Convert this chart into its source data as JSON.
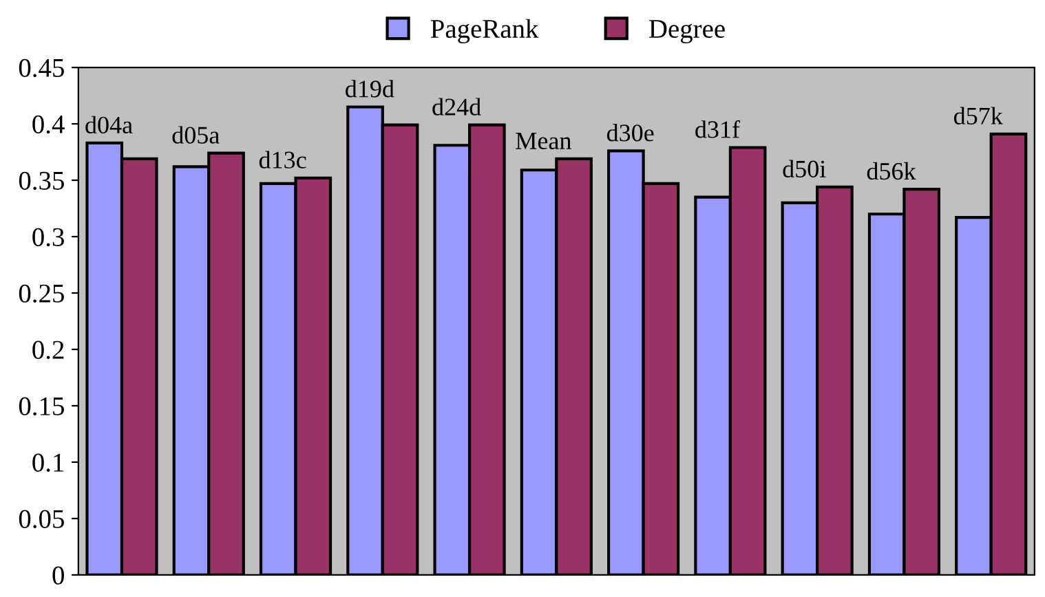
{
  "chart_data": {
    "type": "bar",
    "categories": [
      "d04a",
      "d05a",
      "d13c",
      "d19d",
      "d24d",
      "Mean",
      "d30e",
      "d31f",
      "d50i",
      "d56k",
      "d57k"
    ],
    "series": [
      {
        "name": "PageRank",
        "color": "#9999ff",
        "values": [
          0.383,
          0.362,
          0.347,
          0.415,
          0.381,
          0.359,
          0.376,
          0.335,
          0.33,
          0.32,
          0.317
        ]
      },
      {
        "name": "Degree",
        "color": "#993366",
        "values": [
          0.369,
          0.374,
          0.352,
          0.399,
          0.399,
          0.369,
          0.347,
          0.379,
          0.344,
          0.342,
          0.391
        ]
      }
    ],
    "ylim": [
      0,
      0.45
    ],
    "yticks": [
      0,
      0.05,
      0.1,
      0.15,
      0.2,
      0.25,
      0.3,
      0.35,
      0.4,
      0.45
    ],
    "legend": "top",
    "grid": false
  }
}
